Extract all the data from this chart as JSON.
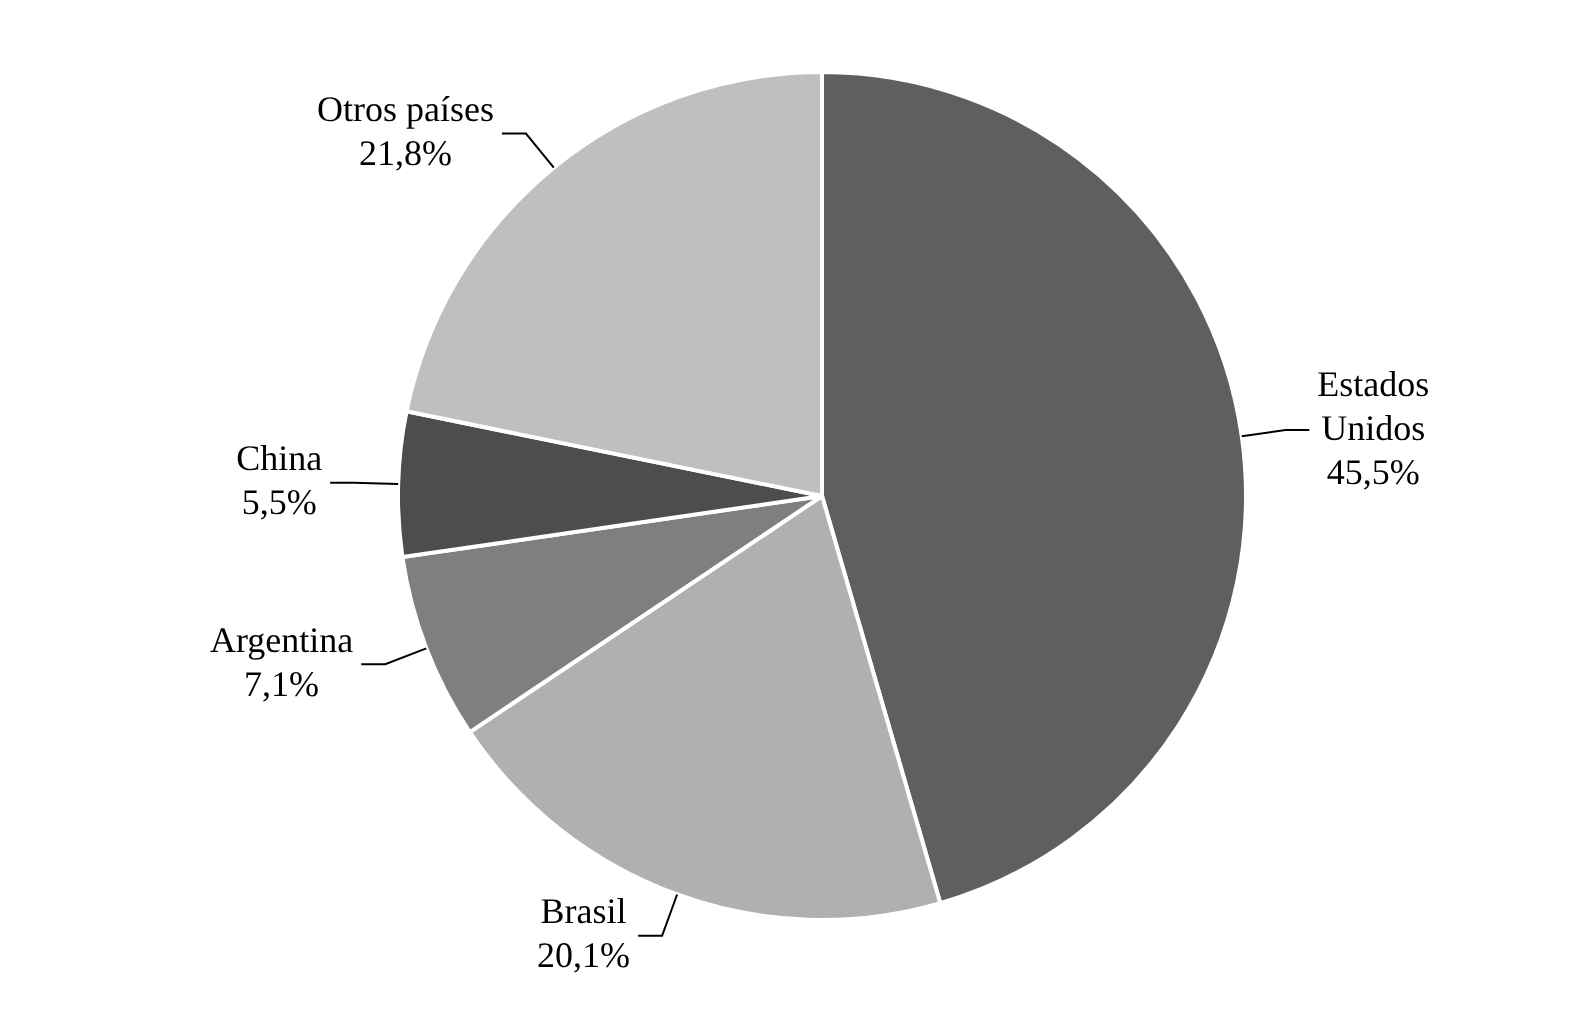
{
  "chart_data": {
    "type": "pie",
    "categories": [
      "Estados Unidos",
      "Brasil",
      "Argentina",
      "China",
      "Otros países"
    ],
    "values": [
      45.5,
      20.1,
      7.1,
      5.5,
      21.8
    ],
    "colors": [
      "#5f5f5f",
      "#b0b0b0",
      "#7f7f7f",
      "#4d4d4d",
      "#bfbfbf"
    ],
    "value_labels": [
      "45,5%",
      "20,1%",
      "7,1%",
      "5,5%",
      "21,8%"
    ],
    "legend": false
  }
}
